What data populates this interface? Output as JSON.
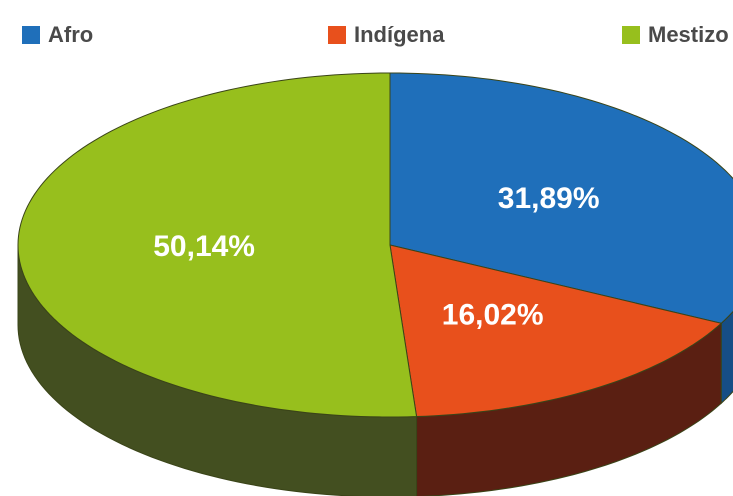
{
  "chart_data": {
    "type": "pie",
    "categories": [
      "Afro",
      "Indígena",
      "Mestizo"
    ],
    "values": [
      31.89,
      16.02,
      50.14
    ],
    "value_labels": [
      "31,89%",
      "16,02%",
      "50,14%"
    ],
    "colors": [
      "#1f6fba",
      "#e8501c",
      "#97bf1d"
    ],
    "side_colors": [
      "#164e86",
      "#5a1f12",
      "#434f20"
    ],
    "legend": "top"
  }
}
